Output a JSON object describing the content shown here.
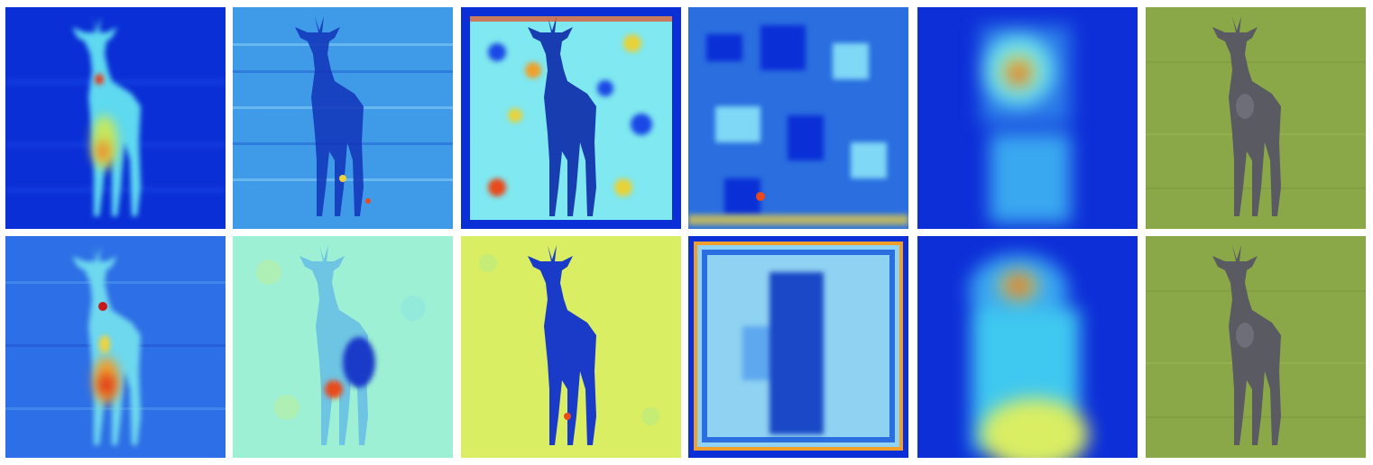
{
  "figure": {
    "rows": [
      {
        "row": "top",
        "panels": [
          {
            "kind": "heatmap",
            "background": "#0a2fd6"
          },
          {
            "kind": "heatmap",
            "background": "#3f9be8"
          },
          {
            "kind": "heatmap",
            "background": "#7fe8f0"
          },
          {
            "kind": "heatmap",
            "background": "#2a6ee0"
          },
          {
            "kind": "heatmap",
            "background": "#0d2fd8"
          },
          {
            "kind": "photo",
            "background": "#8ba849"
          }
        ]
      },
      {
        "row": "bottom",
        "panels": [
          {
            "kind": "heatmap",
            "background": "#2d6fe6"
          },
          {
            "kind": "heatmap",
            "background": "#9ef0d4"
          },
          {
            "kind": "heatmap",
            "background": "#d9ee63"
          },
          {
            "kind": "heatmap",
            "background": "#8fd2f2"
          },
          {
            "kind": "heatmap",
            "background": "#0d2fd8"
          },
          {
            "kind": "photo",
            "background": "#8ba849"
          }
        ]
      }
    ]
  }
}
